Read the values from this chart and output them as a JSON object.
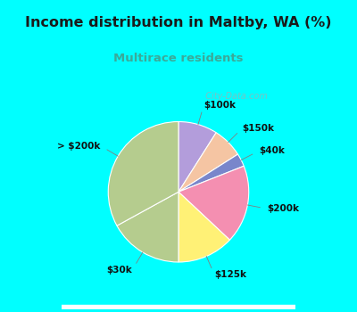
{
  "title": "Income distribution in Maltby, WA (%)",
  "subtitle": "Multirace residents",
  "title_color": "#1a1a1a",
  "subtitle_color": "#3aaa99",
  "outer_bg_color": "#00ffff",
  "labels": [
    "$100k",
    "$150k",
    "$40k",
    "$200k",
    "$125k",
    "$30k",
    "> $200k"
  ],
  "values": [
    9,
    7,
    3,
    18,
    13,
    17,
    33
  ],
  "slice_colors": [
    "#b39ddb",
    "#f5c5a3",
    "#7986cb",
    "#f48fb1",
    "#fff176",
    "#b5cc8e",
    "#b5cc8e"
  ],
  "watermark": "  City-Data.com"
}
